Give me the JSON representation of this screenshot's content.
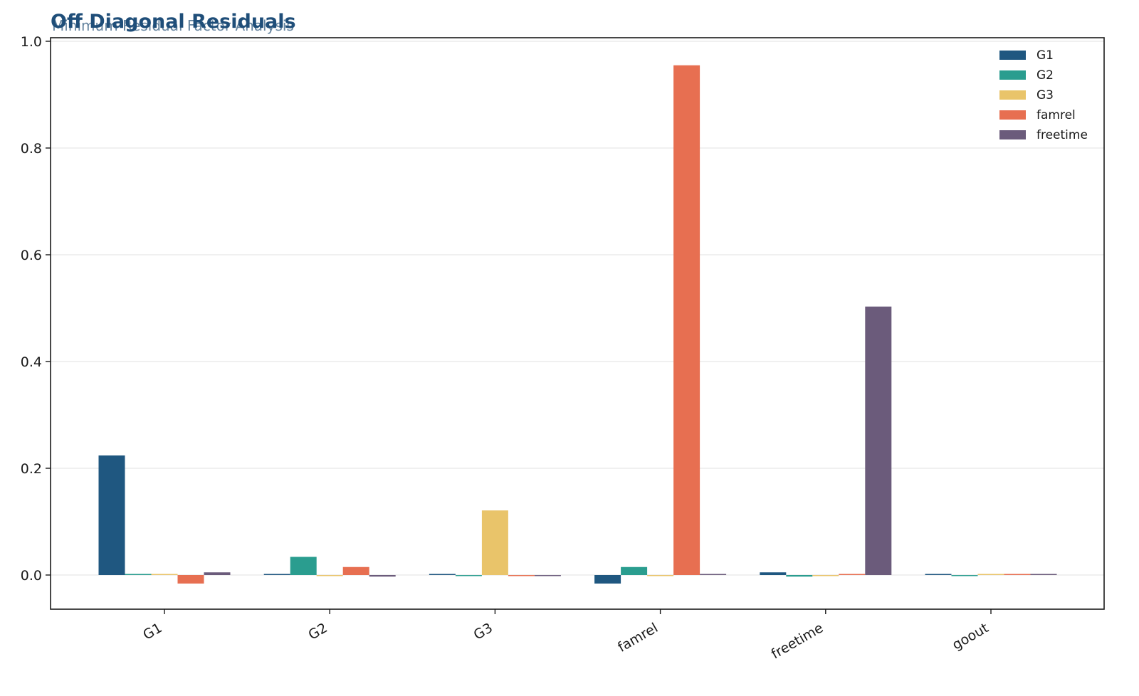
{
  "chart_data": {
    "type": "bar",
    "title": "Off Diagonal Residuals",
    "subtitle": "Minimum Residual Factor Analysis",
    "xlabel": "",
    "ylabel": "",
    "categories": [
      "G1",
      "G2",
      "G3",
      "famrel",
      "freetime",
      "goout"
    ],
    "ylim": [
      -0.065,
      1.0
    ],
    "yticks": [
      0.0,
      0.2,
      0.4,
      0.6,
      0.8,
      1.0
    ],
    "ytick_labels": [
      "0.0",
      "0.2",
      "0.4",
      "0.6",
      "0.8",
      "1.0"
    ],
    "grid": "y",
    "legend_position": "top-right",
    "series": [
      {
        "name": "G1",
        "color": "#1f5780",
        "values": [
          0.224,
          0.0,
          0.002,
          -0.016,
          0.005,
          0.0
        ]
      },
      {
        "name": "G2",
        "color": "#2a9d8f",
        "values": [
          0.0,
          0.034,
          -0.001,
          0.015,
          -0.003,
          -0.001
        ]
      },
      {
        "name": "G3",
        "color": "#e9c46a",
        "values": [
          0.002,
          -0.001,
          0.121,
          -0.001,
          -0.001,
          0.002
        ]
      },
      {
        "name": "famrel",
        "color": "#e76f51",
        "values": [
          -0.016,
          0.015,
          -0.001,
          0.955,
          0.0,
          0.0
        ]
      },
      {
        "name": "freetime",
        "color": "#6b5b7b",
        "values": [
          0.005,
          -0.003,
          -0.001,
          0.0,
          0.503,
          0.0
        ]
      }
    ]
  }
}
